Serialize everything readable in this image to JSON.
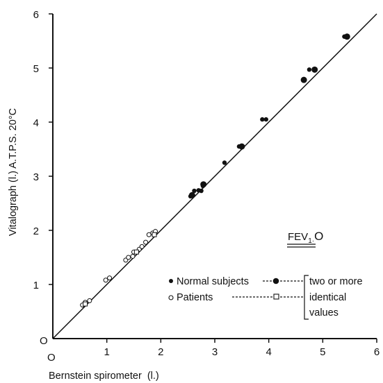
{
  "chart_data": {
    "type": "scatter",
    "title": "",
    "xlabel": "Bernstein spirometer  (l.)",
    "ylabel": "Vitalograph (l.) A.T.P.S. 20°C",
    "xlim": [
      0,
      6
    ],
    "ylim": [
      0,
      6
    ],
    "x_ticks": [
      "1",
      "2",
      "3",
      "4",
      "5",
      "6"
    ],
    "y_ticks": [
      "1",
      "2",
      "3",
      "4",
      "5",
      "6"
    ],
    "origin_labels": [
      "O",
      "O"
    ],
    "identity_line": {
      "from": [
        0,
        0
      ],
      "to": [
        6,
        6
      ]
    },
    "grid": false,
    "legend_position": "bottom-right",
    "series": [
      {
        "name": "Normal subjects",
        "marker": "filled-circle",
        "points": [
          [
            2.55,
            2.63
          ],
          [
            2.58,
            2.65
          ],
          [
            2.62,
            2.73
          ],
          [
            2.7,
            2.74
          ],
          [
            2.75,
            2.73
          ],
          [
            2.78,
            2.82
          ],
          [
            2.79,
            2.85
          ],
          [
            3.18,
            3.25
          ],
          [
            3.45,
            3.55
          ],
          [
            3.5,
            3.55
          ],
          [
            3.88,
            4.05
          ],
          [
            3.95,
            4.05
          ],
          [
            4.65,
            4.78
          ],
          [
            4.75,
            4.97
          ],
          [
            4.85,
            4.97
          ],
          [
            5.4,
            5.58
          ],
          [
            5.45,
            5.58
          ]
        ]
      },
      {
        "name": "Patients",
        "marker": "open-circle",
        "points": [
          [
            0.55,
            0.62
          ],
          [
            0.6,
            0.67
          ],
          [
            0.68,
            0.7
          ],
          [
            0.98,
            1.08
          ],
          [
            1.05,
            1.12
          ],
          [
            1.35,
            1.45
          ],
          [
            1.4,
            1.5
          ],
          [
            1.48,
            1.52
          ],
          [
            1.5,
            1.6
          ],
          [
            1.6,
            1.65
          ],
          [
            1.65,
            1.7
          ],
          [
            1.72,
            1.78
          ],
          [
            1.78,
            1.92
          ],
          [
            1.85,
            1.95
          ],
          [
            1.9,
            1.98
          ]
        ]
      },
      {
        "name": "two or more identical values",
        "marker": "large-filled-circle",
        "points": [
          [
            2.58,
            2.65
          ],
          [
            2.79,
            2.85
          ],
          [
            3.5,
            3.55
          ],
          [
            4.65,
            4.78
          ],
          [
            4.85,
            4.97
          ],
          [
            5.45,
            5.58
          ]
        ]
      },
      {
        "name": "two or more identical values (patients)",
        "marker": "open-square",
        "points": [
          [
            0.6,
            0.64
          ],
          [
            1.55,
            1.6
          ],
          [
            1.88,
            1.92
          ]
        ]
      }
    ],
    "legend": {
      "title": "FEV",
      "title_subscript": "1·",
      "title_symbol": "O",
      "normal_label": "Normal subjects",
      "patients_label": "Patients",
      "bracket_lines": [
        "two or more",
        "identical",
        "values"
      ]
    }
  }
}
